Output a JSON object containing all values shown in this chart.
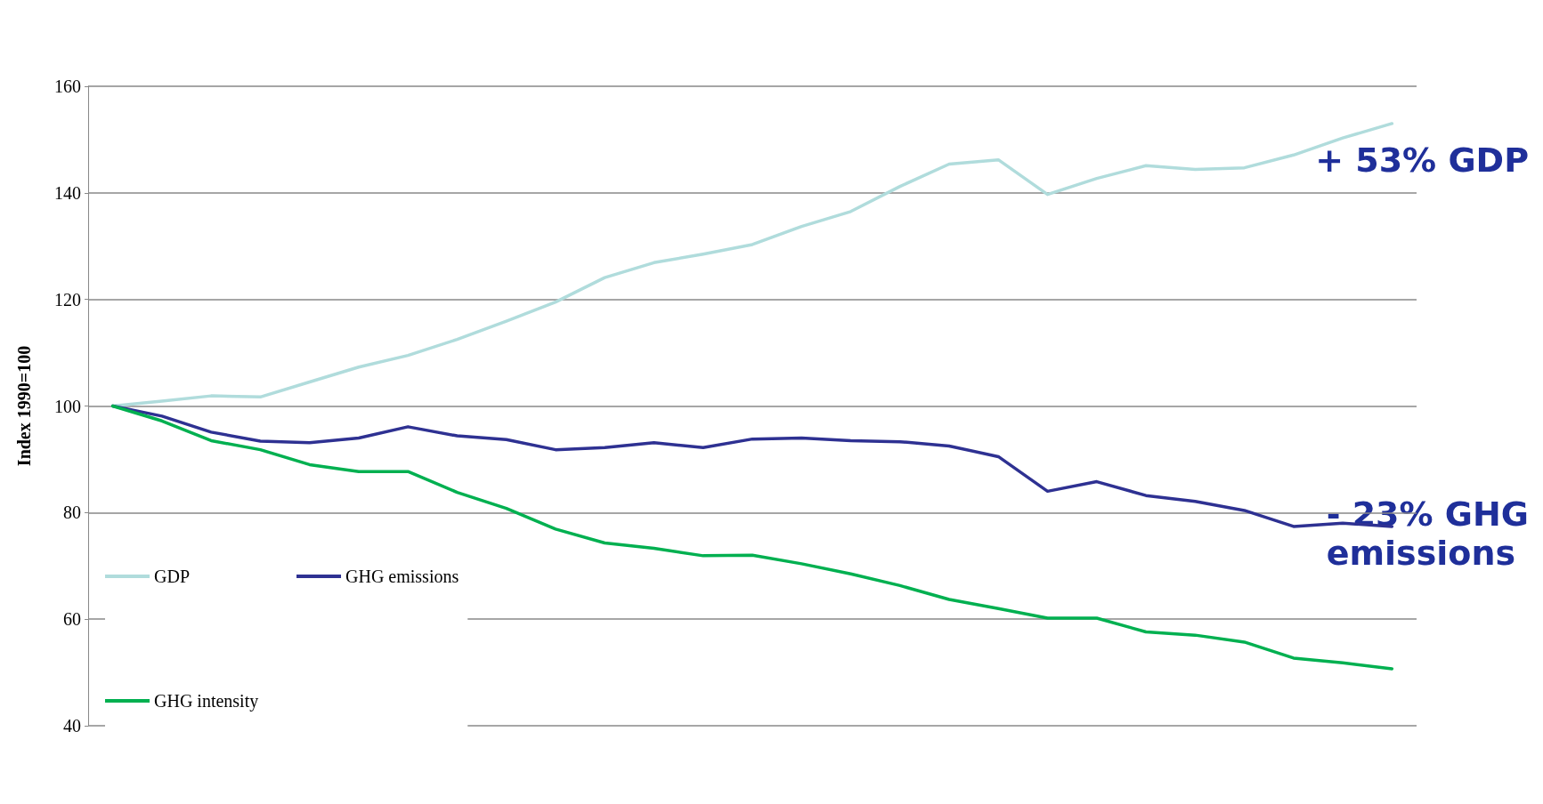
{
  "chart_data": {
    "type": "line",
    "ylabel": "Index 1990=100",
    "categories": [
      null,
      null,
      null,
      null,
      null,
      null,
      null,
      null,
      null,
      null,
      null,
      null,
      null,
      null,
      null,
      null,
      null,
      null,
      null,
      null,
      null,
      null,
      null,
      null,
      null,
      null,
      null
    ],
    "series": [
      {
        "name": "GDP",
        "color": "#b0dcdc",
        "values": [
          100,
          100.9,
          101.9,
          101.7,
          104.5,
          107.3,
          109.5,
          112.5,
          115.9,
          119.5,
          124.1,
          126.9,
          128.5,
          130.3,
          133.7,
          136.5,
          141.2,
          145.4,
          146.2,
          139.7,
          142.7,
          145.1,
          144.4,
          144.7,
          147.1,
          150.3,
          153
        ]
      },
      {
        "name": "GHG emissions",
        "color": "#2e3192",
        "values": [
          100,
          98.1,
          95.1,
          93.4,
          93.1,
          94,
          96.1,
          94.4,
          93.7,
          91.8,
          92.2,
          93.1,
          92.2,
          93.8,
          94,
          93.5,
          93.3,
          92.5,
          90.5,
          84,
          85.8,
          83.2,
          82.1,
          80.4,
          77.4,
          78,
          77.4
        ]
      },
      {
        "name": "GHG intensity",
        "color": "#00b050",
        "values": [
          100,
          97.2,
          93.5,
          91.8,
          89,
          87.7,
          87.7,
          83.8,
          80.8,
          76.9,
          74.3,
          73.3,
          71.9,
          72,
          70.4,
          68.5,
          66.3,
          63.7,
          62,
          60.2,
          60.2,
          57.6,
          57,
          55.7,
          52.7,
          51.8,
          50.7
        ]
      }
    ],
    "ylim": [
      40,
      160
    ],
    "yticks": [
      40,
      60,
      80,
      100,
      120,
      140,
      160
    ],
    "grid": "y",
    "legend": "bottom left",
    "marker": "none",
    "line_style": "solid",
    "annotations": [
      "+ 53% GDP",
      "- 23% GHG\nemissions"
    ]
  }
}
